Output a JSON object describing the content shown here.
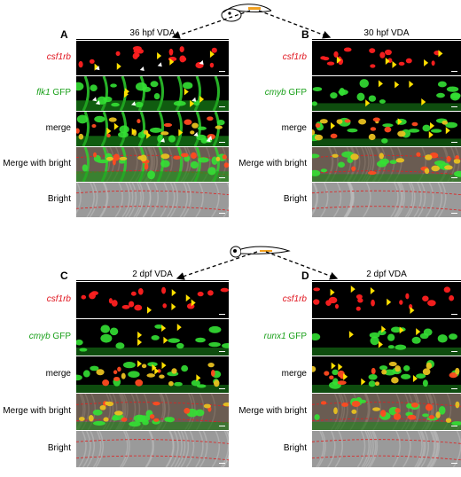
{
  "panels": [
    {
      "letter": "A",
      "title": "36 hpf VDA",
      "rows": [
        {
          "label_em": "csf1rb",
          "label_rest": "",
          "color": "red"
        },
        {
          "label_em": "flk1",
          "label_rest": " GFP",
          "color": "green"
        },
        {
          "label_em": "",
          "label_rest": "merge",
          "color": "black"
        },
        {
          "label_em": "",
          "label_rest": "Merge with bright",
          "color": "black"
        },
        {
          "label_em": "",
          "label_rest": "Bright",
          "color": "black"
        }
      ]
    },
    {
      "letter": "B",
      "title": "30 hpf VDA",
      "rows": [
        {
          "label_em": "csf1rb",
          "label_rest": "",
          "color": "red"
        },
        {
          "label_em": "cmyb",
          "label_rest": " GFP",
          "color": "green"
        },
        {
          "label_em": "",
          "label_rest": "merge",
          "color": "black"
        },
        {
          "label_em": "",
          "label_rest": "Merge with bright",
          "color": "black"
        },
        {
          "label_em": "",
          "label_rest": "Bright",
          "color": "black"
        }
      ]
    },
    {
      "letter": "C",
      "title": "2 dpf VDA",
      "rows": [
        {
          "label_em": "csf1rb",
          "label_rest": "",
          "color": "red"
        },
        {
          "label_em": "cmyb",
          "label_rest": " GFP",
          "color": "green"
        },
        {
          "label_em": "",
          "label_rest": "merge",
          "color": "black"
        },
        {
          "label_em": "",
          "label_rest": "Merge with bright",
          "color": "black"
        },
        {
          "label_em": "",
          "label_rest": "Bright",
          "color": "black"
        }
      ]
    },
    {
      "letter": "D",
      "title": "2 dpf VDA",
      "rows": [
        {
          "label_em": "csf1rb",
          "label_rest": "",
          "color": "red"
        },
        {
          "label_em": "runx1",
          "label_rest": " GFP",
          "color": "green"
        },
        {
          "label_em": "",
          "label_rest": "merge",
          "color": "black"
        },
        {
          "label_em": "",
          "label_rest": "Merge with bright",
          "color": "black"
        },
        {
          "label_em": "",
          "label_rest": "Bright",
          "color": "black"
        }
      ]
    }
  ],
  "colors": {
    "red_channel": "#ff2020",
    "green_channel": "#22d022",
    "merge_yellow": "#e8c020",
    "arrow_yellow": "#ffe000",
    "arrow_white": "#ffffff",
    "dash_red": "#e02020"
  }
}
